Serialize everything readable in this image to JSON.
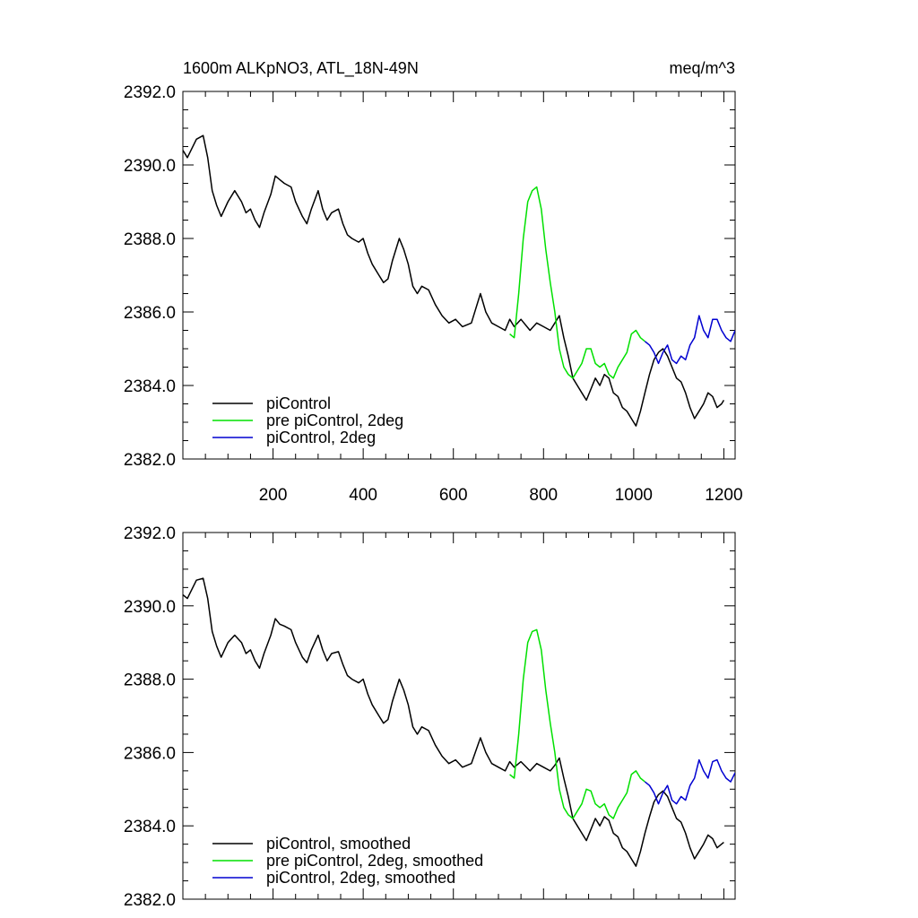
{
  "chart_data": [
    {
      "type": "line",
      "title": "1600m ALKpNO3, ATL_18N-49N",
      "units": "meq/m^3",
      "xlim": [
        0,
        1225
      ],
      "ylim": [
        2382.0,
        2392.0
      ],
      "x_ticks": [
        200,
        400,
        600,
        800,
        1000,
        1200
      ],
      "x_tick_labels": [
        "200",
        "400",
        "600",
        "800",
        "1000",
        "1200"
      ],
      "y_ticks": [
        2382.0,
        2384.0,
        2386.0,
        2388.0,
        2390.0,
        2392.0
      ],
      "y_tick_labels": [
        "2382.0",
        "2384.0",
        "2386.0",
        "2388.0",
        "2390.0",
        "2392.0"
      ],
      "legend_position": "bottom-left",
      "colors": {
        "piControl": "#000000",
        "pre": "#00e000",
        "two_deg": "#0000d0"
      },
      "series": [
        {
          "name": "piControl",
          "color": "#000000",
          "x": [
            0,
            10,
            30,
            45,
            55,
            65,
            75,
            85,
            100,
            115,
            130,
            140,
            150,
            160,
            170,
            180,
            195,
            205,
            215,
            225,
            240,
            250,
            265,
            275,
            285,
            300,
            310,
            320,
            330,
            345,
            355,
            365,
            375,
            390,
            400,
            410,
            420,
            435,
            445,
            455,
            465,
            480,
            490,
            500,
            510,
            520,
            530,
            545,
            560,
            575,
            590,
            605,
            620,
            640,
            660,
            672,
            685,
            700,
            715,
            725,
            735,
            750,
            770,
            785,
            800,
            815,
            825,
            835,
            845,
            855,
            865,
            875,
            885,
            895,
            905,
            915,
            925,
            935,
            945,
            955,
            965,
            975,
            985,
            995,
            1005,
            1015,
            1025,
            1035,
            1045,
            1055,
            1065,
            1075,
            1085,
            1095,
            1105,
            1115,
            1125,
            1135,
            1145,
            1155,
            1165,
            1175,
            1185,
            1195,
            1200
          ],
          "y": [
            2390.4,
            2390.2,
            2390.7,
            2390.8,
            2390.2,
            2389.3,
            2388.9,
            2388.6,
            2389.0,
            2389.3,
            2389.0,
            2388.7,
            2388.8,
            2388.5,
            2388.3,
            2388.7,
            2389.2,
            2389.7,
            2389.6,
            2389.5,
            2389.4,
            2389.0,
            2388.6,
            2388.4,
            2388.8,
            2389.3,
            2388.8,
            2388.5,
            2388.7,
            2388.8,
            2388.4,
            2388.1,
            2388.0,
            2387.9,
            2388.0,
            2387.6,
            2387.3,
            2387.0,
            2386.8,
            2386.9,
            2387.4,
            2388.0,
            2387.7,
            2387.3,
            2386.7,
            2386.5,
            2386.7,
            2386.6,
            2386.2,
            2385.9,
            2385.7,
            2385.8,
            2385.6,
            2385.7,
            2386.5,
            2386.0,
            2385.7,
            2385.6,
            2385.5,
            2385.8,
            2385.6,
            2385.8,
            2385.5,
            2385.7,
            2385.6,
            2385.5,
            2385.7,
            2385.9,
            2385.3,
            2384.8,
            2384.2,
            2384.0,
            2383.8,
            2383.6,
            2383.9,
            2384.2,
            2384.0,
            2384.3,
            2384.2,
            2383.8,
            2383.7,
            2383.4,
            2383.3,
            2383.1,
            2382.9,
            2383.3,
            2383.8,
            2384.3,
            2384.7,
            2384.9,
            2385.0,
            2384.8,
            2384.5,
            2384.2,
            2384.1,
            2383.8,
            2383.4,
            2383.1,
            2383.3,
            2383.5,
            2383.8,
            2383.7,
            2383.4,
            2383.5,
            2383.6
          ]
        },
        {
          "name": "pre piControl, 2deg",
          "color": "#00e000",
          "x": [
            725,
            735,
            745,
            755,
            765,
            775,
            785,
            795,
            805,
            815,
            825,
            835,
            845,
            855,
            865,
            875,
            885,
            895,
            905,
            915,
            925,
            935,
            945,
            955,
            965,
            975,
            985,
            995,
            1005,
            1015,
            1025
          ],
          "y": [
            2385.4,
            2385.3,
            2386.5,
            2388.0,
            2389.0,
            2389.3,
            2389.4,
            2388.8,
            2387.7,
            2386.8,
            2386.0,
            2385.0,
            2384.5,
            2384.3,
            2384.2,
            2384.4,
            2384.6,
            2385.0,
            2385.0,
            2384.6,
            2384.5,
            2384.6,
            2384.3,
            2384.2,
            2384.5,
            2384.7,
            2384.9,
            2385.4,
            2385.5,
            2385.3,
            2385.2
          ]
        },
        {
          "name": "piControl, 2deg",
          "color": "#0000d0",
          "x": [
            1025,
            1035,
            1045,
            1055,
            1065,
            1075,
            1085,
            1095,
            1105,
            1115,
            1125,
            1135,
            1145,
            1155,
            1165,
            1175,
            1185,
            1195,
            1205,
            1215,
            1225
          ],
          "y": [
            2385.2,
            2385.1,
            2384.9,
            2384.6,
            2384.9,
            2385.1,
            2384.7,
            2384.6,
            2384.8,
            2384.7,
            2385.1,
            2385.3,
            2385.9,
            2385.5,
            2385.3,
            2385.8,
            2385.8,
            2385.5,
            2385.3,
            2385.2,
            2385.5
          ]
        }
      ]
    },
    {
      "type": "line",
      "title": "",
      "xlim": [
        0,
        1225
      ],
      "ylim": [
        2382.0,
        2392.0
      ],
      "x_ticks": [
        200,
        400,
        600,
        800,
        1000,
        1200
      ],
      "y_ticks": [
        2382.0,
        2384.0,
        2386.0,
        2388.0,
        2390.0,
        2392.0
      ],
      "y_tick_labels": [
        "2382.0",
        "2384.0",
        "2386.0",
        "2388.0",
        "2390.0",
        "2392.0"
      ],
      "legend_position": "bottom-left",
      "series": [
        {
          "name": "piControl, smoothed",
          "color": "#000000",
          "x": [
            0,
            10,
            30,
            45,
            55,
            65,
            75,
            85,
            100,
            115,
            130,
            140,
            150,
            160,
            170,
            180,
            195,
            205,
            215,
            225,
            240,
            250,
            265,
            275,
            285,
            300,
            310,
            320,
            330,
            345,
            355,
            365,
            375,
            390,
            400,
            410,
            420,
            435,
            445,
            455,
            465,
            480,
            490,
            500,
            510,
            520,
            530,
            545,
            560,
            575,
            590,
            605,
            620,
            640,
            660,
            672,
            685,
            700,
            715,
            725,
            735,
            750,
            770,
            785,
            800,
            815,
            825,
            835,
            845,
            855,
            865,
            875,
            885,
            895,
            905,
            915,
            925,
            935,
            945,
            955,
            965,
            975,
            985,
            995,
            1005,
            1015,
            1025,
            1035,
            1045,
            1055,
            1065,
            1075,
            1085,
            1095,
            1105,
            1115,
            1125,
            1135,
            1145,
            1155,
            1165,
            1175,
            1185,
            1195,
            1200
          ],
          "y": [
            2390.3,
            2390.2,
            2390.7,
            2390.75,
            2390.2,
            2389.3,
            2388.9,
            2388.6,
            2389.0,
            2389.2,
            2389.0,
            2388.7,
            2388.8,
            2388.5,
            2388.3,
            2388.7,
            2389.2,
            2389.65,
            2389.5,
            2389.45,
            2389.35,
            2389.0,
            2388.6,
            2388.45,
            2388.8,
            2389.2,
            2388.8,
            2388.5,
            2388.7,
            2388.75,
            2388.4,
            2388.1,
            2388.0,
            2387.9,
            2388.0,
            2387.6,
            2387.3,
            2387.0,
            2386.8,
            2386.9,
            2387.4,
            2388.0,
            2387.7,
            2387.3,
            2386.7,
            2386.5,
            2386.7,
            2386.6,
            2386.2,
            2385.9,
            2385.7,
            2385.8,
            2385.6,
            2385.7,
            2386.4,
            2386.0,
            2385.7,
            2385.6,
            2385.5,
            2385.75,
            2385.6,
            2385.75,
            2385.5,
            2385.7,
            2385.6,
            2385.5,
            2385.65,
            2385.85,
            2385.3,
            2384.8,
            2384.2,
            2384.0,
            2383.8,
            2383.6,
            2383.9,
            2384.2,
            2384.0,
            2384.25,
            2384.15,
            2383.8,
            2383.7,
            2383.4,
            2383.3,
            2383.1,
            2382.9,
            2383.3,
            2383.8,
            2384.25,
            2384.65,
            2384.85,
            2384.95,
            2384.8,
            2384.5,
            2384.2,
            2384.1,
            2383.8,
            2383.4,
            2383.1,
            2383.3,
            2383.5,
            2383.75,
            2383.65,
            2383.4,
            2383.5,
            2383.55
          ]
        },
        {
          "name": "pre piControl, 2deg, smoothed",
          "color": "#00e000",
          "x": [
            725,
            735,
            745,
            755,
            765,
            775,
            785,
            795,
            805,
            815,
            825,
            835,
            845,
            855,
            865,
            875,
            885,
            895,
            905,
            915,
            925,
            935,
            945,
            955,
            965,
            975,
            985,
            995,
            1005,
            1015,
            1025
          ],
          "y": [
            2385.4,
            2385.3,
            2386.5,
            2388.0,
            2389.0,
            2389.3,
            2389.35,
            2388.8,
            2387.7,
            2386.8,
            2386.0,
            2385.0,
            2384.5,
            2384.3,
            2384.2,
            2384.4,
            2384.6,
            2385.0,
            2384.95,
            2384.6,
            2384.5,
            2384.6,
            2384.3,
            2384.2,
            2384.5,
            2384.7,
            2384.9,
            2385.4,
            2385.5,
            2385.3,
            2385.2
          ]
        },
        {
          "name": "piControl, 2deg, smoothed",
          "color": "#0000d0",
          "x": [
            1025,
            1035,
            1045,
            1055,
            1065,
            1075,
            1085,
            1095,
            1105,
            1115,
            1125,
            1135,
            1145,
            1155,
            1165,
            1175,
            1185,
            1195,
            1205,
            1215,
            1225
          ],
          "y": [
            2385.2,
            2385.1,
            2384.9,
            2384.6,
            2384.9,
            2385.1,
            2384.7,
            2384.6,
            2384.8,
            2384.7,
            2385.1,
            2385.3,
            2385.8,
            2385.5,
            2385.3,
            2385.75,
            2385.8,
            2385.5,
            2385.3,
            2385.2,
            2385.45
          ]
        }
      ]
    }
  ]
}
